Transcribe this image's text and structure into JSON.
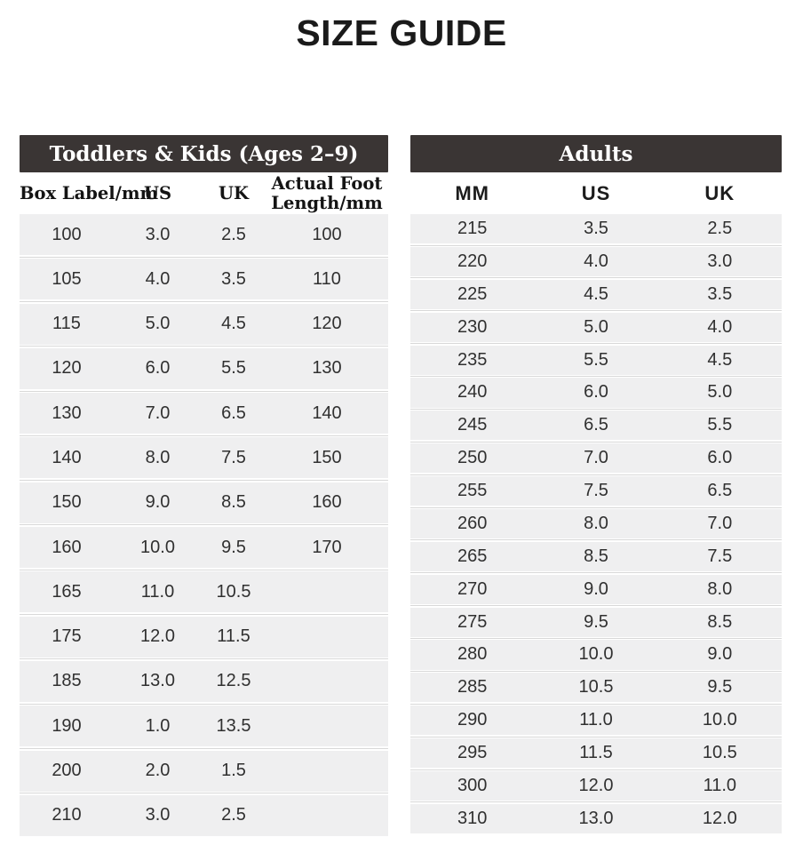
{
  "page": {
    "title": "SIZE GUIDE"
  },
  "kids_table": {
    "title": "Toddlers & Kids (Ages 2–9)",
    "columns": [
      "Box Label/mm",
      "US",
      "UK",
      "Actual Foot Length/mm"
    ],
    "rows": [
      [
        "100",
        "3.0",
        "2.5",
        "100"
      ],
      [
        "105",
        "4.0",
        "3.5",
        "110"
      ],
      [
        "115",
        "5.0",
        "4.5",
        "120"
      ],
      [
        "120",
        "6.0",
        "5.5",
        "130"
      ],
      [
        "130",
        "7.0",
        "6.5",
        "140"
      ],
      [
        "140",
        "8.0",
        "7.5",
        "150"
      ],
      [
        "150",
        "9.0",
        "8.5",
        "160"
      ],
      [
        "160",
        "10.0",
        "9.5",
        "170"
      ],
      [
        "165",
        "11.0",
        "10.5",
        ""
      ],
      [
        "175",
        "12.0",
        "11.5",
        ""
      ],
      [
        "185",
        "13.0",
        "12.5",
        ""
      ],
      [
        "190",
        "1.0",
        "13.5",
        ""
      ],
      [
        "200",
        "2.0",
        "1.5",
        ""
      ],
      [
        "210",
        "3.0",
        "2.5",
        ""
      ]
    ]
  },
  "adults_table": {
    "title": "Adults",
    "columns": [
      "MM",
      "US",
      "UK"
    ],
    "rows": [
      [
        "215",
        "3.5",
        "2.5"
      ],
      [
        "220",
        "4.0",
        "3.0"
      ],
      [
        "225",
        "4.5",
        "3.5"
      ],
      [
        "230",
        "5.0",
        "4.0"
      ],
      [
        "235",
        "5.5",
        "4.5"
      ],
      [
        "240",
        "6.0",
        "5.0"
      ],
      [
        "245",
        "6.5",
        "5.5"
      ],
      [
        "250",
        "7.0",
        "6.0"
      ],
      [
        "255",
        "7.5",
        "6.5"
      ],
      [
        "260",
        "8.0",
        "7.0"
      ],
      [
        "265",
        "8.5",
        "7.5"
      ],
      [
        "270",
        "9.0",
        "8.0"
      ],
      [
        "275",
        "9.5",
        "8.5"
      ],
      [
        "280",
        "10.0",
        "9.0"
      ],
      [
        "285",
        "10.5",
        "9.5"
      ],
      [
        "290",
        "11.0",
        "10.0"
      ],
      [
        "295",
        "11.5",
        "10.5"
      ],
      [
        "300",
        "12.0",
        "11.0"
      ],
      [
        "310",
        "13.0",
        "12.0"
      ]
    ]
  },
  "colors": {
    "header_bar": "#3a3534",
    "header_bar_text": "#ffffff",
    "row_fill": "#efeff0",
    "row_separator": "#d8d8d8",
    "text": "#303030",
    "title_text": "#1a1a1a"
  }
}
